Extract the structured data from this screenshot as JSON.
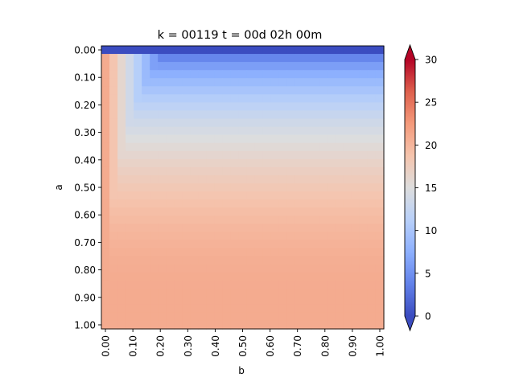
{
  "chart_data": {
    "type": "heatmap",
    "title": "k = 00119 t = 00d 02h 00m",
    "xlabel": "b",
    "ylabel": "a",
    "x_ticks": [
      "0.00",
      "0.10",
      "0.20",
      "0.30",
      "0.40",
      "0.50",
      "0.60",
      "0.70",
      "0.80",
      "0.90",
      "1.00"
    ],
    "y_ticks": [
      "0.00",
      "0.10",
      "0.20",
      "0.30",
      "0.40",
      "0.50",
      "0.60",
      "0.70",
      "0.80",
      "0.90",
      "1.00"
    ],
    "x_range": [
      0.0,
      1.0
    ],
    "y_range": [
      0.0,
      1.0
    ],
    "grid_size": [
      35,
      35
    ],
    "colorbar": {
      "colormap": "coolwarm",
      "vmin": 0,
      "vmax": 30,
      "extend": "both",
      "ticks": [
        "0",
        "5",
        "10",
        "15",
        "20",
        "25",
        "30"
      ],
      "tick_values": [
        0,
        5,
        10,
        15,
        20,
        25,
        30
      ]
    },
    "field_summary": {
      "a0_row_value": 0,
      "b0_column_value": 21,
      "interior_plateau_value": 21,
      "mid_field_value_at_a_0.30": 15
    },
    "grid": false
  }
}
